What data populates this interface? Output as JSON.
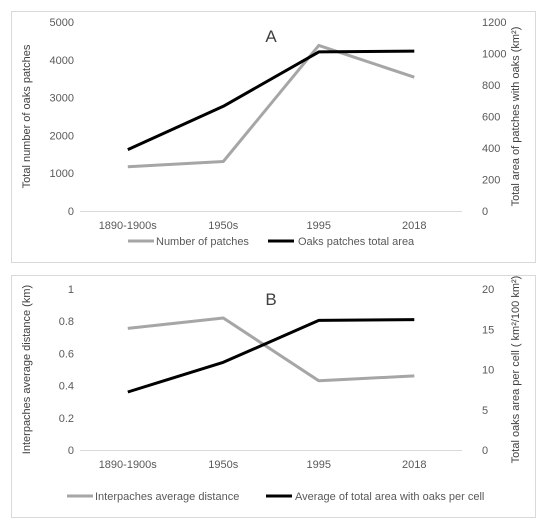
{
  "chart_data": [
    {
      "type": "line",
      "panel_label": "A",
      "categories": [
        "1890-1900s",
        "1950s",
        "1995",
        "2018"
      ],
      "ylabel_left": "Total number of oaks  patches",
      "ylabel_right": "Total area of patches with oaks (km²)",
      "ylim_left": [
        0,
        5000
      ],
      "ylim_right": [
        0,
        1200
      ],
      "yticks_left": [
        "0",
        "1000",
        "2000",
        "3000",
        "4000",
        "5000"
      ],
      "yticks_right": [
        "0",
        "200",
        "400",
        "600",
        "800",
        "1000",
        "1200"
      ],
      "grid": false,
      "legend_position": "bottom",
      "series": [
        {
          "name": "Number of patches",
          "axis": "left",
          "color": "#a6a6a6",
          "values": [
            1170,
            1310,
            4380,
            3540
          ]
        },
        {
          "name": "Oaks patches total area",
          "axis": "right",
          "color": "#000000",
          "values": [
            390,
            665,
            1010,
            1015
          ]
        }
      ]
    },
    {
      "type": "line",
      "panel_label": "B",
      "categories": [
        "1890-1900s",
        "1950s",
        "1995",
        "2018"
      ],
      "ylabel_left": "Interpaches average distance (km)",
      "ylabel_right": "Total oaks area per cell ( km²/100 km²)",
      "ylim_left": [
        0,
        1
      ],
      "ylim_right": [
        0,
        20
      ],
      "yticks_left": [
        "0",
        "0.2",
        "0.4",
        "0.6",
        "0.8",
        "1"
      ],
      "yticks_right": [
        "0",
        "5",
        "10",
        "15",
        "20"
      ],
      "grid": false,
      "legend_position": "bottom",
      "series": [
        {
          "name": "Interpaches average distance",
          "axis": "left",
          "color": "#a6a6a6",
          "values": [
            0.755,
            0.82,
            0.43,
            0.46
          ]
        },
        {
          "name": "Average of total area with oaks per cell",
          "axis": "right",
          "color": "#000000",
          "values": [
            7.2,
            10.9,
            16.1,
            16.2
          ]
        }
      ]
    }
  ]
}
